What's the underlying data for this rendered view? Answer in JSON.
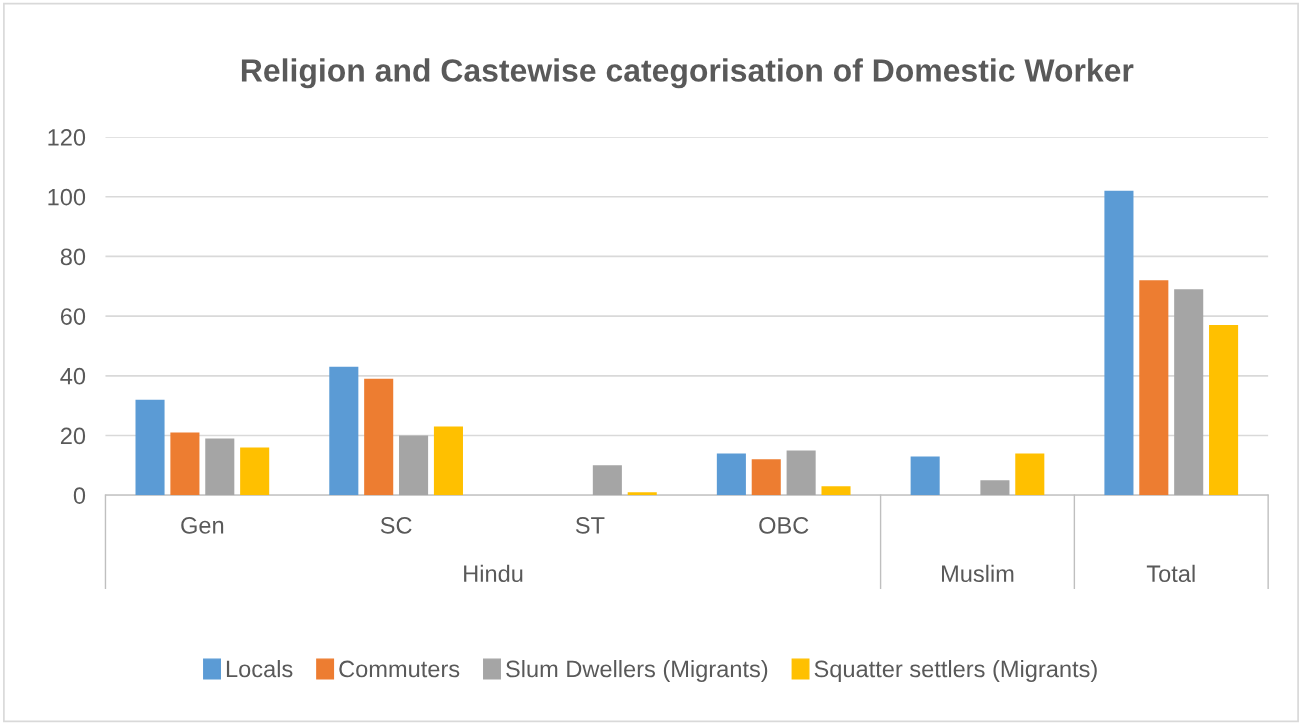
{
  "chart_data": {
    "type": "bar",
    "title": "Religion and Castewise categorisation of Domestic Worker",
    "categories": [
      "Gen",
      "SC",
      "ST",
      "OBC",
      null,
      null
    ],
    "annotations": [
      "Hindu",
      "Muslim",
      "Total"
    ],
    "series": [
      {
        "name": "Locals",
        "color": "#5b9bd5",
        "values": [
          32,
          43,
          0,
          14,
          13,
          102
        ]
      },
      {
        "name": "Commuters",
        "color": "#ed7d31",
        "values": [
          21,
          39,
          0,
          12,
          0,
          72
        ]
      },
      {
        "name": "Slum Dwellers (Migrants)",
        "color": "#a5a5a5",
        "values": [
          19,
          20,
          10,
          15,
          5,
          69
        ]
      },
      {
        "name": "Squatter settlers (Migrants)",
        "color": "#ffc000",
        "values": [
          16,
          23,
          1,
          3,
          14,
          57
        ]
      }
    ],
    "ylim": [
      0,
      120
    ],
    "yticks": [
      0,
      20,
      40,
      60,
      80,
      100,
      120
    ],
    "grid": "y",
    "legend": "bottom"
  }
}
